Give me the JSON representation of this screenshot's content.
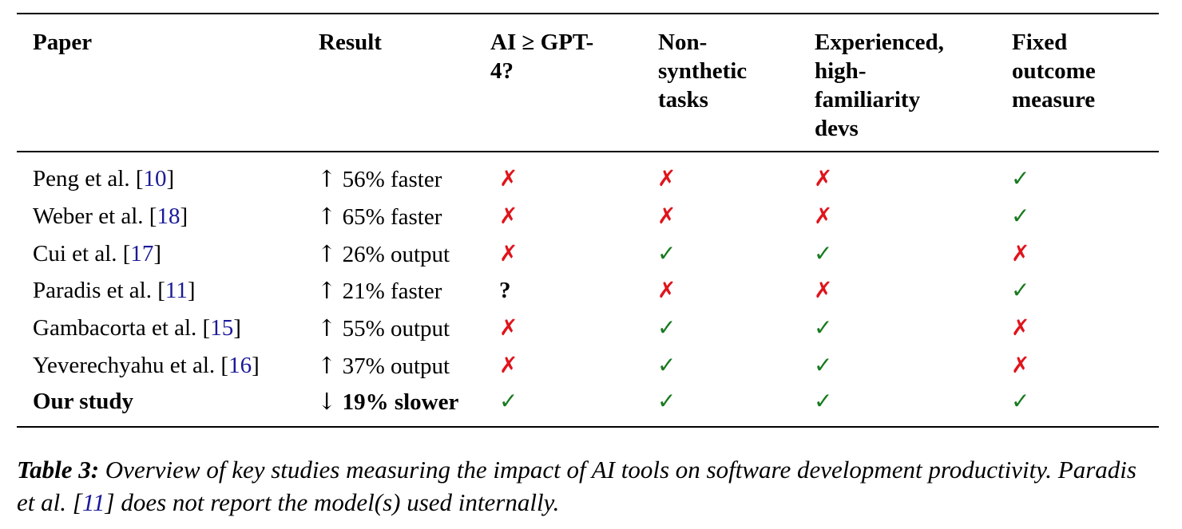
{
  "table": {
    "headers": [
      "Paper",
      "Result",
      "AI ≥ GPT-\n4?",
      "Non-\nsynthetic\ntasks",
      "Experienced,\nhigh-\nfamiliarity\ndevs",
      "Fixed\noutcome\nmeasure"
    ],
    "rows": [
      {
        "paper": "Peng et al. [",
        "ref": "10",
        "close": "]",
        "arrow": "↑",
        "result": " 56% faster",
        "marks": [
          "✗",
          "✗",
          "✗",
          "✓"
        ],
        "kinds": [
          "no",
          "no",
          "no",
          "yes"
        ]
      },
      {
        "paper": "Weber et al. [",
        "ref": "18",
        "close": "]",
        "arrow": "↑",
        "result": " 65% faster",
        "marks": [
          "✗",
          "✗",
          "✗",
          "✓"
        ],
        "kinds": [
          "no",
          "no",
          "no",
          "yes"
        ]
      },
      {
        "paper": "Cui et al. [",
        "ref": "17",
        "close": "]",
        "arrow": "↑",
        "result": " 26% output",
        "marks": [
          "✗",
          "✓",
          "✓",
          "✗"
        ],
        "kinds": [
          "no",
          "yes",
          "yes",
          "no"
        ]
      },
      {
        "paper": "Paradis et al. [",
        "ref": "11",
        "close": "]",
        "arrow": "↑",
        "result": " 21% faster",
        "marks": [
          "?",
          "✗",
          "✗",
          "✓"
        ],
        "kinds": [
          "unk",
          "no",
          "no",
          "yes"
        ]
      },
      {
        "paper": "Gambacorta et al. [",
        "ref": "15",
        "close": "]",
        "arrow": "↑",
        "result": " 55% output",
        "marks": [
          "✗",
          "✓",
          "✓",
          "✗"
        ],
        "kinds": [
          "no",
          "yes",
          "yes",
          "no"
        ]
      },
      {
        "paper": "Yeverechyahu et al. [",
        "ref": "16",
        "close": "]",
        "arrow": "↑",
        "result": " 37% output",
        "marks": [
          "✗",
          "✓",
          "✓",
          "✗"
        ],
        "kinds": [
          "no",
          "yes",
          "yes",
          "no"
        ]
      },
      {
        "paper": "Our study",
        "ref": "",
        "close": "",
        "arrow": "↓",
        "result": " 19% slower",
        "marks": [
          "✓",
          "✓",
          "✓",
          "✓"
        ],
        "kinds": [
          "yes",
          "yes",
          "yes",
          "yes"
        ],
        "bold": true
      }
    ]
  },
  "caption": {
    "label": "Table 3:",
    "text_before": " Overview of key studies measuring the impact of AI tools on software development productivity. Paradis et al. [",
    "ref": "11",
    "text_after": "] does not report the model(s) used internally."
  },
  "colors": {
    "check": "#177a1f",
    "cross": "#e0141b",
    "ref": "#1a1a99"
  }
}
